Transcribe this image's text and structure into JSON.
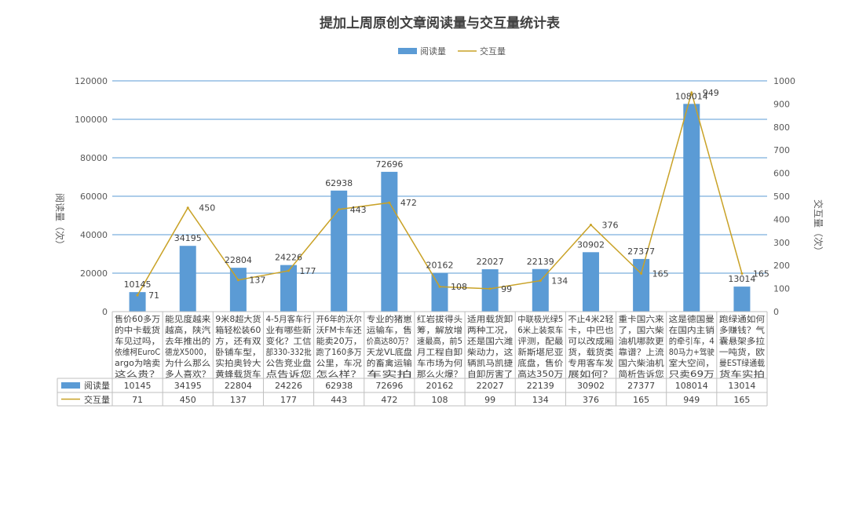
{
  "chart_data": {
    "type": "bar",
    "title": "提加上周原创文章阅读量与交互量统计表",
    "ylabel": "阅读量（次）",
    "y2label": "交互量（次）",
    "ylim": [
      0,
      120000
    ],
    "y2lim": [
      0,
      1000
    ],
    "yticks": [
      "0",
      "20000",
      "40000",
      "60000",
      "80000",
      "100000",
      "120000"
    ],
    "y2ticks": [
      "0",
      "100",
      "200",
      "300",
      "400",
      "500",
      "600",
      "700",
      "800",
      "900",
      "1000"
    ],
    "legend_position": "top",
    "grid": true,
    "colors": {
      "bar": "#5b9bd5",
      "line": "#c9a227",
      "grid": "#5b9bd5"
    },
    "categories": [
      [
        "售价60多万",
        "的中卡载货",
        "车见过吗，",
        "依维柯EuroC",
        "argo为啥卖",
        "这么贵？"
      ],
      [
        "能见度越来",
        "越高，陕汽",
        "去年推出的",
        "德龙X5000，",
        "为什么那么",
        "多人喜欢？"
      ],
      [
        "9米8超大货",
        "箱轻松装60",
        "方，还有双",
        "卧铺车型，",
        "实拍奥铃大",
        "黄蜂载货车"
      ],
      [
        "4-5月客车行",
        "业有哪些新",
        "变化？工信",
        "部330-332批",
        "公告竞业盘",
        "点告诉您"
      ],
      [
        "开6年的沃尔",
        "沃FM卡车还",
        "能卖20万，",
        "跑了160多万",
        "公里，车况",
        "怎么样？"
      ],
      [
        "专业的猪崽",
        "运输车，售",
        "价高达80万？",
        "天龙VL底盘",
        "的畜禽运输",
        "车实拍"
      ],
      [
        "红岩拔得头",
        "筹，解放增",
        "速最高，前5",
        "月工程自卸",
        "车市场为何",
        "那么火爆？"
      ],
      [
        "适用载货卸",
        "两种工况，",
        "还是国六潍",
        "柴动力，这",
        "辆凯马凯捷",
        "自卸厉害了"
      ],
      [
        "中联极光绿5",
        "6米上装泵车",
        "评测，配最",
        "新斯堪尼亚",
        "底盘，售价",
        "高达350万"
      ],
      [
        "不止4米2轻",
        "卡，中巴也",
        "可以改成厢",
        "货，载货类",
        "专用客车发",
        "展如何？"
      ],
      [
        "重卡国六来",
        "了，国六柴",
        "油机哪款更",
        "靠谱？上流",
        "国六柴油机",
        "简析告诉您"
      ],
      [
        "这是德国曼",
        "在国内主销",
        "的牵引车，4",
        "80马力+驾驶",
        "室大空间，",
        "只卖69万"
      ],
      [
        "跑绿通如何",
        "多赚钱？气",
        "囊悬架多拉",
        "一吨货，欧",
        "曼EST绿通载",
        "货车实拍"
      ]
    ],
    "series": [
      {
        "name": "阅读量",
        "type": "bar",
        "axis": "left",
        "values": [
          10145,
          34195,
          22804,
          24226,
          62938,
          72696,
          20162,
          22027,
          22139,
          30902,
          27377,
          108014,
          13014
        ]
      },
      {
        "name": "交互量",
        "type": "line",
        "axis": "right",
        "values": [
          71,
          450,
          137,
          177,
          443,
          472,
          108,
          99,
          134,
          376,
          165,
          949,
          165
        ]
      }
    ]
  }
}
